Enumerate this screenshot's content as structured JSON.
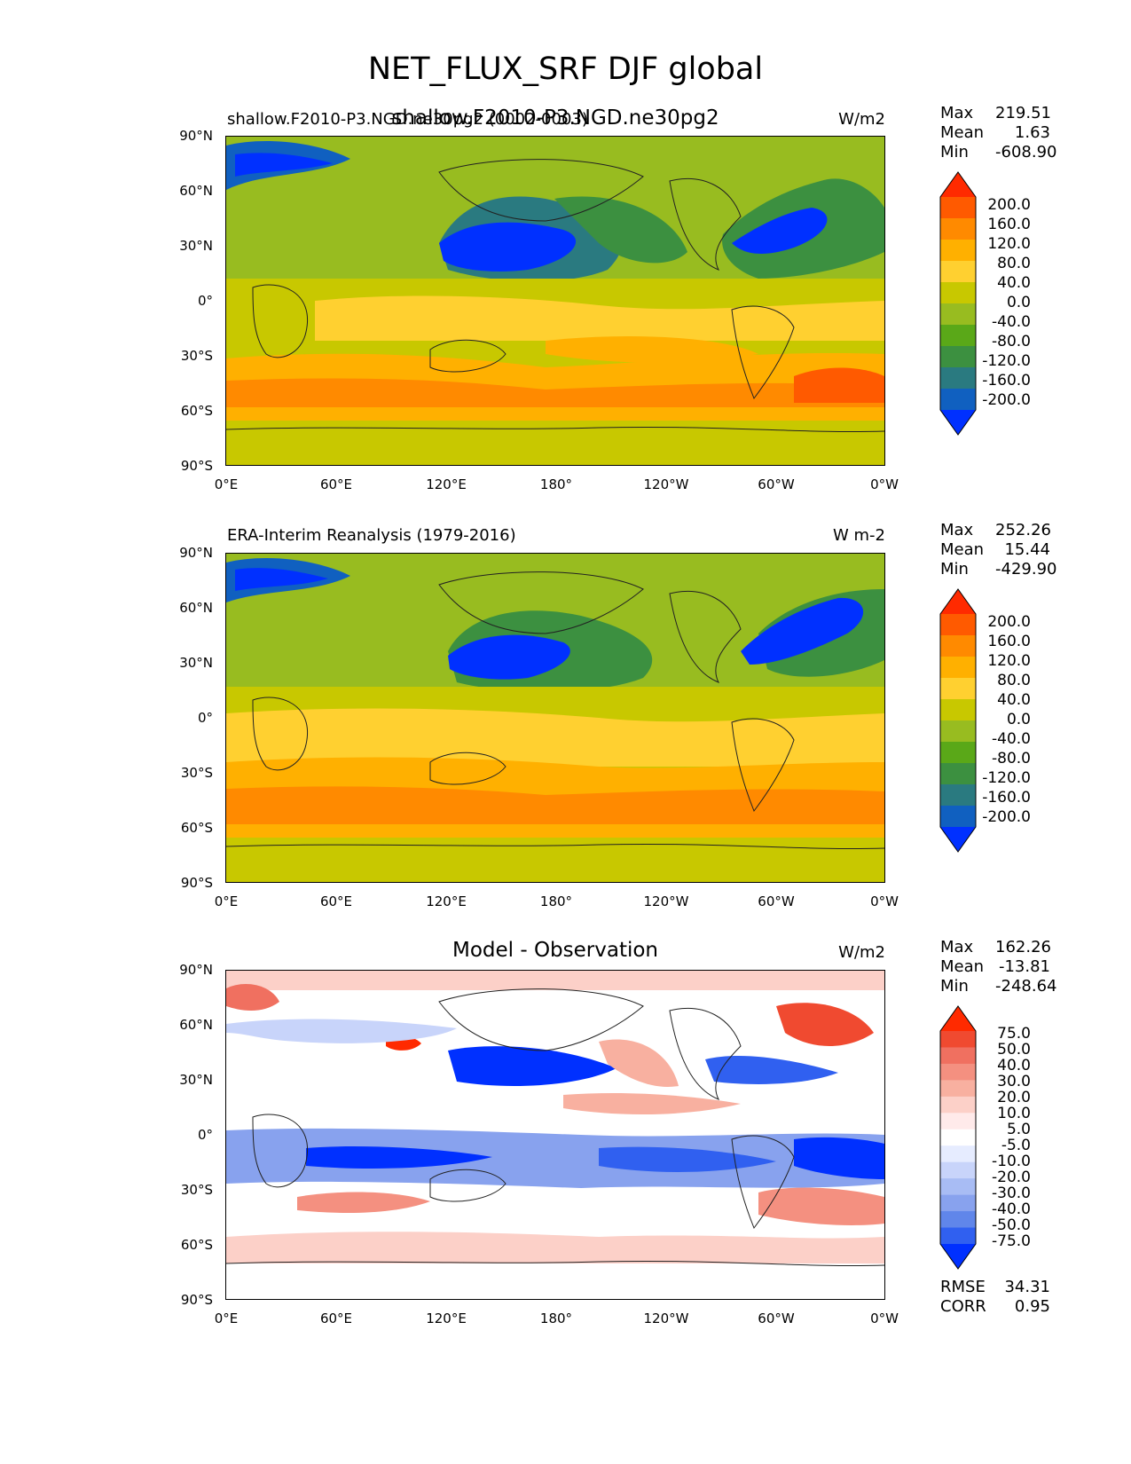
{
  "figure": {
    "title": "NET_FLUX_SRF DJF global"
  },
  "axis_ticks": {
    "lat": [
      "90°N",
      "60°N",
      "30°N",
      "0°",
      "30°S",
      "60°S",
      "90°S"
    ],
    "lon": [
      "0°E",
      "60°E",
      "120°E",
      "180°",
      "120°W",
      "60°W",
      "0°W"
    ]
  },
  "panels": [
    {
      "left_title": "shallow.F2010-P3.NGD.ne30pg2 (0002-0003)",
      "center_title": "shallow.F2010-P3.NGD.ne30pg2",
      "units": "W/m2",
      "stats": {
        "max_label": "Max",
        "max": "219.51",
        "mean_label": "Mean",
        "mean": "1.63",
        "min_label": "Min",
        "min": "-608.90"
      },
      "colorbar": {
        "labels": [
          "200.0",
          "160.0",
          "120.0",
          "80.0",
          "40.0",
          "0.0",
          "-40.0",
          "-80.0",
          "-120.0",
          "-160.0",
          "-200.0"
        ],
        "colors": [
          "#ff2a00",
          "#ff5a00",
          "#ff8a00",
          "#ffb000",
          "#ffd030",
          "#c8c800",
          "#98bc20",
          "#5aa818",
          "#3c9040",
          "#2a7a80",
          "#1060c0",
          "#0030ff"
        ]
      }
    },
    {
      "left_title": "ERA-Interim Reanalysis (1979-2016)",
      "center_title": "",
      "units": "W m-2",
      "stats": {
        "max_label": "Max",
        "max": "252.26",
        "mean_label": "Mean",
        "mean": "15.44",
        "min_label": "Min",
        "min": "-429.90"
      },
      "colorbar": {
        "labels": [
          "200.0",
          "160.0",
          "120.0",
          "80.0",
          "40.0",
          "0.0",
          "-40.0",
          "-80.0",
          "-120.0",
          "-160.0",
          "-200.0"
        ],
        "colors": [
          "#ff2a00",
          "#ff5a00",
          "#ff8a00",
          "#ffb000",
          "#ffd030",
          "#c8c800",
          "#98bc20",
          "#5aa818",
          "#3c9040",
          "#2a7a80",
          "#1060c0",
          "#0030ff"
        ]
      }
    },
    {
      "left_title": "",
      "center_title": "Model - Observation",
      "units": "W/m2",
      "stats": {
        "max_label": "Max",
        "max": "162.26",
        "mean_label": "Mean",
        "mean": "-13.81",
        "min_label": "Min",
        "min": "-248.64"
      },
      "extra_stats": {
        "rmse_label": "RMSE",
        "rmse": "34.31",
        "corr_label": "CORR",
        "corr": "0.95"
      },
      "colorbar": {
        "labels": [
          "75.0",
          "50.0",
          "40.0",
          "30.0",
          "20.0",
          "10.0",
          "5.0",
          "-5.0",
          "-10.0",
          "-20.0",
          "-30.0",
          "-40.0",
          "-50.0",
          "-75.0"
        ],
        "colors": [
          "#ff2a00",
          "#f04a30",
          "#f07060",
          "#f49080",
          "#f8b0a0",
          "#fcd0c8",
          "#ffeaea",
          "#ffffff",
          "#e6ecff",
          "#c8d4fa",
          "#a8bcf4",
          "#88a2ee",
          "#6086ea",
          "#3060f0",
          "#0030ff"
        ]
      }
    }
  ],
  "chart_data": [
    {
      "type": "heatmap",
      "title": "shallow.F2010-P3.NGD.ne30pg2",
      "units": "W/m2",
      "x_range": [
        0,
        360
      ],
      "y_range": [
        -90,
        90
      ],
      "levels": [
        -200,
        -160,
        -120,
        -80,
        -40,
        0,
        40,
        80,
        120,
        160,
        200
      ],
      "max": 219.51,
      "mean": 1.63,
      "min": -608.9
    },
    {
      "type": "heatmap",
      "title": "ERA-Interim Reanalysis (1979-2016)",
      "units": "W m-2",
      "x_range": [
        0,
        360
      ],
      "y_range": [
        -90,
        90
      ],
      "levels": [
        -200,
        -160,
        -120,
        -80,
        -40,
        0,
        40,
        80,
        120,
        160,
        200
      ],
      "max": 252.26,
      "mean": 15.44,
      "min": -429.9
    },
    {
      "type": "heatmap",
      "title": "Model - Observation",
      "units": "W/m2",
      "x_range": [
        0,
        360
      ],
      "y_range": [
        -90,
        90
      ],
      "levels": [
        -75,
        -50,
        -40,
        -30,
        -20,
        -10,
        -5,
        5,
        10,
        20,
        30,
        40,
        50,
        75
      ],
      "max": 162.26,
      "mean": -13.81,
      "min": -248.64,
      "rmse": 34.31,
      "corr": 0.95
    }
  ]
}
